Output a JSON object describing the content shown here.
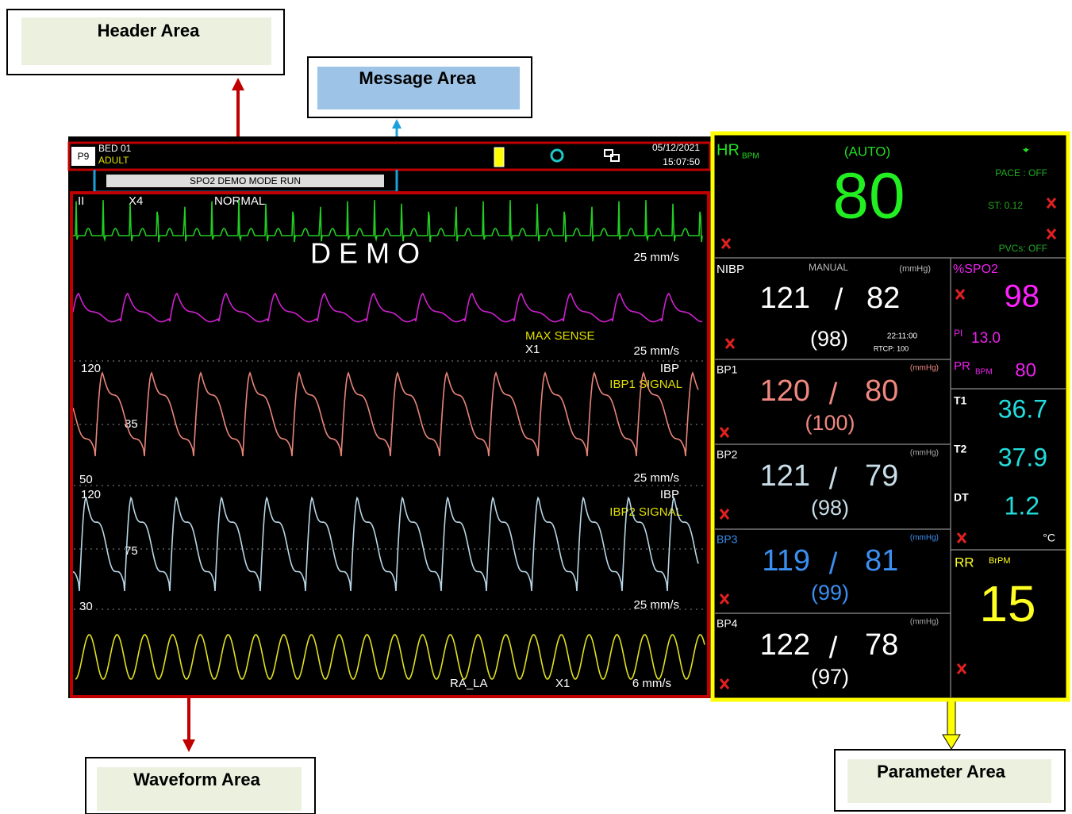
{
  "callouts": {
    "header": "Header Area",
    "message": "Message Area",
    "waveform": "Waveform Area",
    "parameter": "Parameter Area"
  },
  "header": {
    "page": "P9",
    "bed": "BED 01",
    "patient": "ADULT",
    "date": "05/12/2021",
    "time": "15:07:50"
  },
  "message": "SPO2 DEMO MODE RUN",
  "waveforms": {
    "ecg": {
      "lead": "II",
      "gain": "X4",
      "mode": "NORMAL",
      "demo": "D E M O",
      "speed": "25 mm/s"
    },
    "spo2": {
      "sense": "MAX SENSE",
      "gain": "X1",
      "speed": "25 mm/s"
    },
    "ibp1": {
      "top": "120",
      "mid": "85",
      "bottom": "50",
      "label": "IBP",
      "signal": "IBP1 SIGNAL",
      "speed": "25 mm/s"
    },
    "ibp2": {
      "top": "120",
      "mid": "75",
      "bottom": "30",
      "label": "IBP",
      "signal": "IBP2 SIGNAL",
      "speed": "25 mm/s"
    },
    "resp": {
      "lead": "RA_LA",
      "gain": "X1",
      "speed": "6 mm/s"
    }
  },
  "parameters": {
    "separator": "/",
    "hr": {
      "label": "HR",
      "unit": "BPM",
      "mode": "(AUTO)",
      "value": "80",
      "pace": "PACE : OFF",
      "st": "ST: 0.12",
      "pvcs": "PVCs:  OFF"
    },
    "nibp": {
      "label": "NIBP",
      "mode": "MANUAL",
      "unit": "(mmHg)",
      "sys": "121",
      "dia": "82",
      "mean": "(98)",
      "time": "22:11:00",
      "rtcp": "RTCP:  100"
    },
    "bp1": {
      "label": "BP1",
      "unit": "(mmHg)",
      "sys": "120",
      "dia": "80",
      "mean": "(100)"
    },
    "bp2": {
      "label": "BP2",
      "unit": "(mmHg)",
      "sys": "121",
      "dia": "79",
      "mean": "(98)"
    },
    "bp3": {
      "label": "BP3",
      "unit": "(mmHg)",
      "sys": "119",
      "dia": "81",
      "mean": "(99)"
    },
    "bp4": {
      "label": "BP4",
      "unit": "(mmHg)",
      "sys": "122",
      "dia": "78",
      "mean": "(97)"
    },
    "spo2": {
      "label": "%SPO2",
      "value": "98",
      "pi_label": "PI",
      "pi": "13.0",
      "pr_label": "PR",
      "pr_unit": "BPM",
      "pr": "80"
    },
    "temp": {
      "t1_label": "T1",
      "t1": "36.7",
      "t2_label": "T2",
      "t2": "37.9",
      "dt_label": "DT",
      "dt": "1.2",
      "unit": "°C"
    },
    "rr": {
      "label": "RR",
      "unit": "BrPM",
      "value": "15"
    }
  }
}
